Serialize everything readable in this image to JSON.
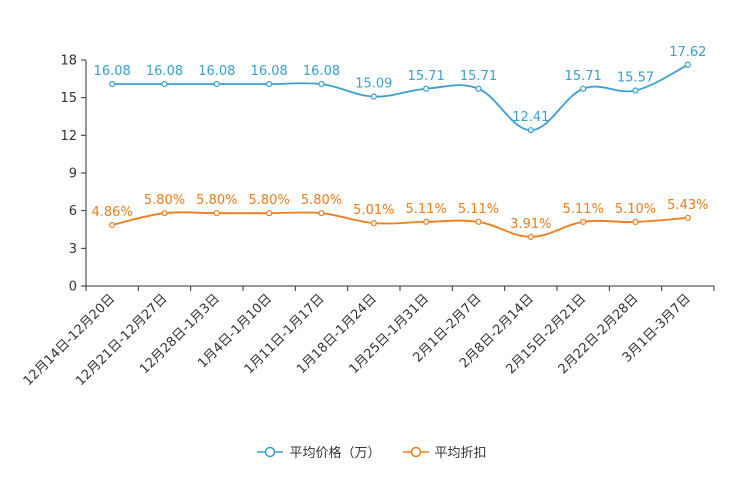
{
  "chart_data": {
    "type": "line",
    "categories": [
      "12月14日-12月20日",
      "12月21日-12月27日",
      "12月28日-1月3日",
      "1月4日-1月10日",
      "1月11日-1月17日",
      "1月18日-1月24日",
      "1月25日-1月31日",
      "2月1日-2月7日",
      "2月8日-2月14日",
      "2月15日-2月21日",
      "2月22日-2月28日",
      "3月1日-3月7日"
    ],
    "ylim": [
      0,
      18
    ],
    "yticks": [
      0,
      3,
      6,
      9,
      12,
      15,
      18
    ],
    "grid": false,
    "legend_position": "bottom-center",
    "series": [
      {
        "name": "平均价格（万）",
        "color": "#3a9fd1",
        "values": [
          16.08,
          16.08,
          16.08,
          16.08,
          16.08,
          15.09,
          15.71,
          15.71,
          12.41,
          15.71,
          15.57,
          17.62
        ],
        "labels": [
          "16.08",
          "16.08",
          "16.08",
          "16.08",
          "16.08",
          "15.09",
          "15.71",
          "15.71",
          "12.41",
          "15.71",
          "15.57",
          "17.62"
        ]
      },
      {
        "name": "平均折扣",
        "color": "#f07c1a",
        "values": [
          4.86,
          5.8,
          5.8,
          5.8,
          5.8,
          5.01,
          5.11,
          5.11,
          3.91,
          5.11,
          5.1,
          5.43
        ],
        "labels": [
          "4.86%",
          "5.80%",
          "5.80%",
          "5.80%",
          "5.80%",
          "5.01%",
          "5.11%",
          "5.11%",
          "3.91%",
          "5.11%",
          "5.10%",
          "5.43%"
        ]
      }
    ]
  }
}
